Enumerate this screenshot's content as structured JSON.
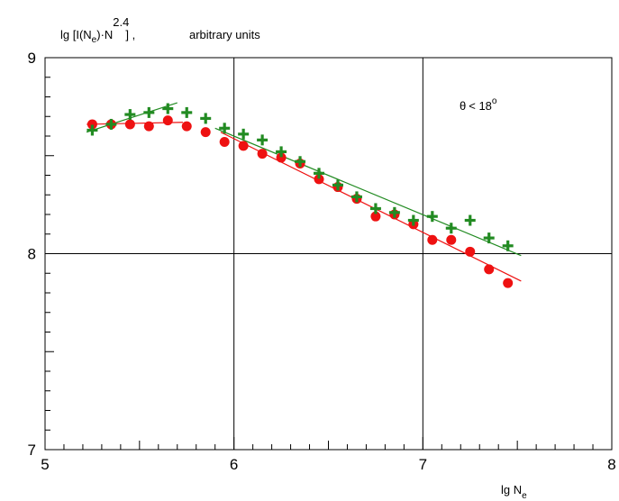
{
  "chart_data": {
    "type": "scatter",
    "title": "",
    "ylabel": {
      "base": "lg [I(N",
      "sub1": "e",
      "mid": ")·N",
      "sub2": "e",
      "sup": "2.4",
      "tail": "] ,",
      "units": "arbitrary units"
    },
    "xlabel": {
      "base": "lg N",
      "sub": "e"
    },
    "annotation": {
      "theta": "θ",
      "rel": "< 18",
      "sup": "o"
    },
    "xlim": [
      5,
      8
    ],
    "ylim": [
      7,
      9
    ],
    "xticks": [
      "5",
      "6",
      "7",
      "8"
    ],
    "yticks": [
      "7",
      "8",
      "9"
    ],
    "grid": {
      "x": [
        6,
        7
      ],
      "y": [
        8
      ]
    },
    "series": [
      {
        "marker": "circle",
        "color": "#ee1111",
        "points": [
          [
            5.25,
            8.66
          ],
          [
            5.35,
            8.66
          ],
          [
            5.45,
            8.66
          ],
          [
            5.55,
            8.65
          ],
          [
            5.65,
            8.68
          ],
          [
            5.75,
            8.65
          ],
          [
            5.85,
            8.62
          ],
          [
            5.95,
            8.57
          ],
          [
            6.05,
            8.55
          ],
          [
            6.15,
            8.51
          ],
          [
            6.25,
            8.49
          ],
          [
            6.35,
            8.46
          ],
          [
            6.45,
            8.38
          ],
          [
            6.55,
            8.34
          ],
          [
            6.65,
            8.28
          ],
          [
            6.75,
            8.19
          ],
          [
            6.85,
            8.2
          ],
          [
            6.95,
            8.15
          ],
          [
            7.05,
            8.07
          ],
          [
            7.15,
            8.07
          ],
          [
            7.25,
            8.01
          ],
          [
            7.35,
            7.92
          ],
          [
            7.45,
            7.85
          ]
        ],
        "fits": [
          [
            [
              5.22,
              8.66
            ],
            [
              5.73,
              8.67
            ]
          ],
          [
            [
              5.93,
              8.62
            ],
            [
              7.52,
              7.86
            ]
          ]
        ]
      },
      {
        "marker": "plus",
        "color": "#228b22",
        "points": [
          [
            5.25,
            8.63
          ],
          [
            5.35,
            8.66
          ],
          [
            5.45,
            8.71
          ],
          [
            5.55,
            8.72
          ],
          [
            5.65,
            8.74
          ],
          [
            5.75,
            8.72
          ],
          [
            5.85,
            8.69
          ],
          [
            5.95,
            8.64
          ],
          [
            6.05,
            8.61
          ],
          [
            6.15,
            8.58
          ],
          [
            6.25,
            8.52
          ],
          [
            6.35,
            8.47
          ],
          [
            6.45,
            8.41
          ],
          [
            6.55,
            8.35
          ],
          [
            6.65,
            8.29
          ],
          [
            6.75,
            8.23
          ],
          [
            6.85,
            8.21
          ],
          [
            6.95,
            8.17
          ],
          [
            7.05,
            8.19
          ],
          [
            7.15,
            8.13
          ],
          [
            7.25,
            8.17
          ],
          [
            7.35,
            8.08
          ],
          [
            7.45,
            8.04
          ]
        ],
        "fits": [
          [
            [
              5.22,
              8.62
            ],
            [
              5.7,
              8.77
            ]
          ],
          [
            [
              5.9,
              8.64
            ],
            [
              7.52,
              7.99
            ]
          ]
        ]
      }
    ]
  }
}
